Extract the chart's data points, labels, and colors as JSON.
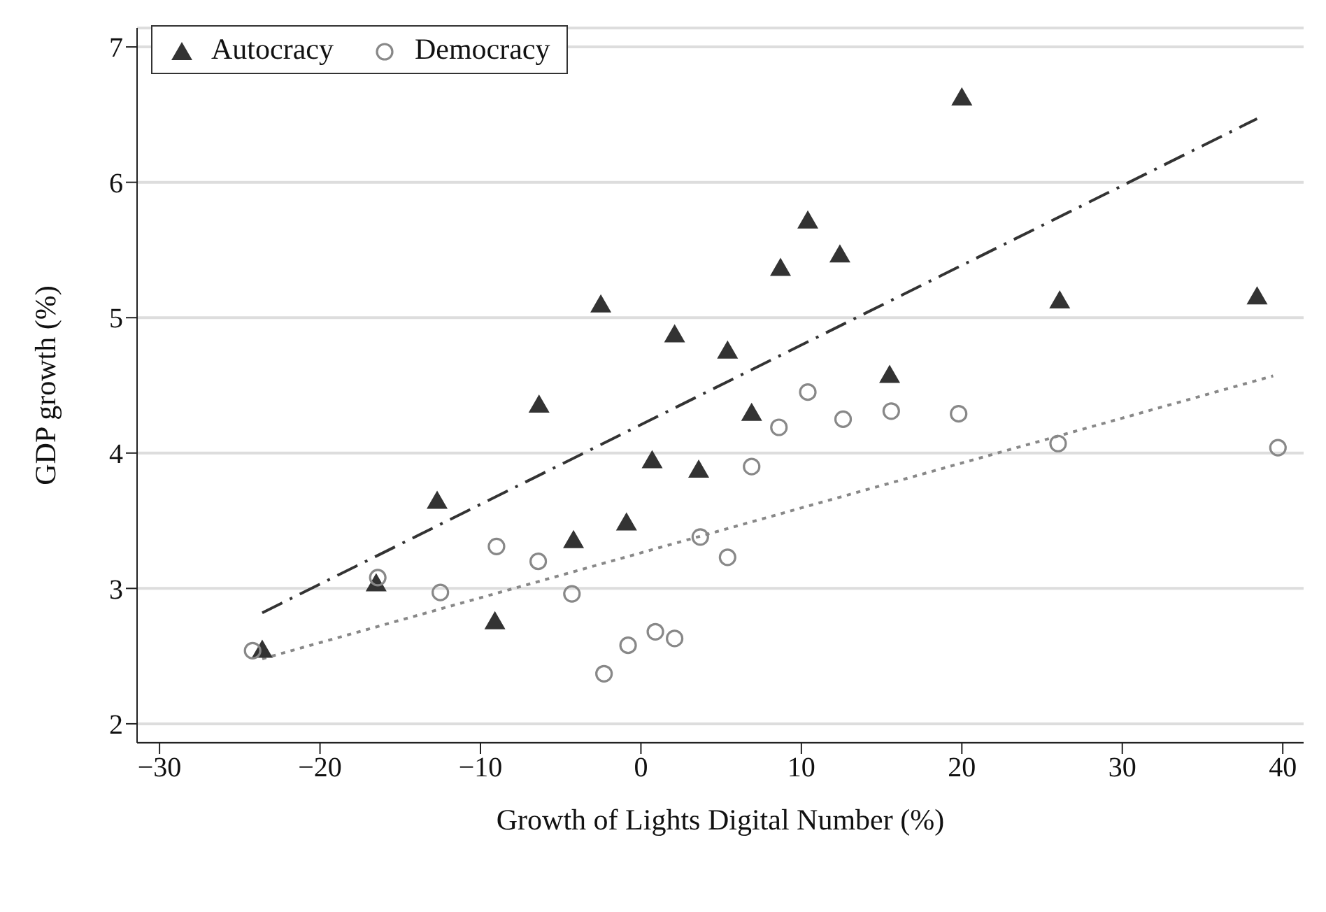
{
  "chart_data": {
    "type": "scatter",
    "xlabel": "Growth of Lights Digital Number (%)",
    "ylabel": "GDP growth (%)",
    "xlim": [
      -31.4,
      41.3
    ],
    "ylim": [
      1.86,
      7.14
    ],
    "xticks": [
      {
        "value": -30,
        "label": "−30"
      },
      {
        "value": -20,
        "label": "−20"
      },
      {
        "value": -10,
        "label": "−10"
      },
      0,
      10,
      20,
      30,
      40
    ],
    "yticks": [
      2,
      3,
      4,
      5,
      6,
      7
    ],
    "grid": "y",
    "legend": "top left",
    "series": [
      {
        "name": "Autocracy",
        "marker": "triangle",
        "color": "#333333",
        "x": [
          -6.35,
          0.7,
          3.6,
          -12.7,
          -0.9,
          -4.2,
          -16.5,
          -9.1,
          -23.6,
          6.9,
          20.0,
          10.4,
          8.7,
          12.4,
          26.1,
          38.4,
          5.4,
          15.5,
          -2.5,
          2.1
        ],
        "values": [
          4.36,
          3.95,
          3.88,
          3.65,
          3.49,
          3.36,
          3.04,
          2.76,
          2.55,
          4.3,
          6.63,
          5.72,
          5.37,
          5.47,
          5.13,
          5.16,
          4.76,
          4.58,
          5.1,
          4.88
        ]
      },
      {
        "name": "Democracy",
        "marker": "circle",
        "color": "#888888",
        "x": [
          -24.2,
          -16.4,
          -9.0,
          -6.4,
          -12.5,
          -4.3,
          3.7,
          5.4,
          0.9,
          -0.8,
          2.1,
          -2.3,
          8.6,
          12.6,
          15.6,
          19.8,
          26.0,
          39.7,
          6.9,
          10.4
        ],
        "values": [
          2.54,
          3.08,
          3.31,
          3.2,
          2.97,
          2.96,
          3.38,
          3.23,
          2.68,
          2.58,
          2.63,
          2.37,
          4.19,
          4.25,
          4.31,
          4.29,
          4.07,
          4.04,
          3.9,
          4.45
        ]
      },
      {
        "type": "line",
        "line_style": "dashed",
        "marker": "none",
        "color": "#333333",
        "x": [
          -23.6,
          38.4
        ],
        "values": [
          2.82,
          6.47
        ]
      },
      {
        "type": "line",
        "line_style": "dotted",
        "marker": "none",
        "color": "#888888",
        "x": [
          -23.6,
          39.4
        ],
        "values": [
          2.48,
          4.57
        ]
      }
    ]
  }
}
